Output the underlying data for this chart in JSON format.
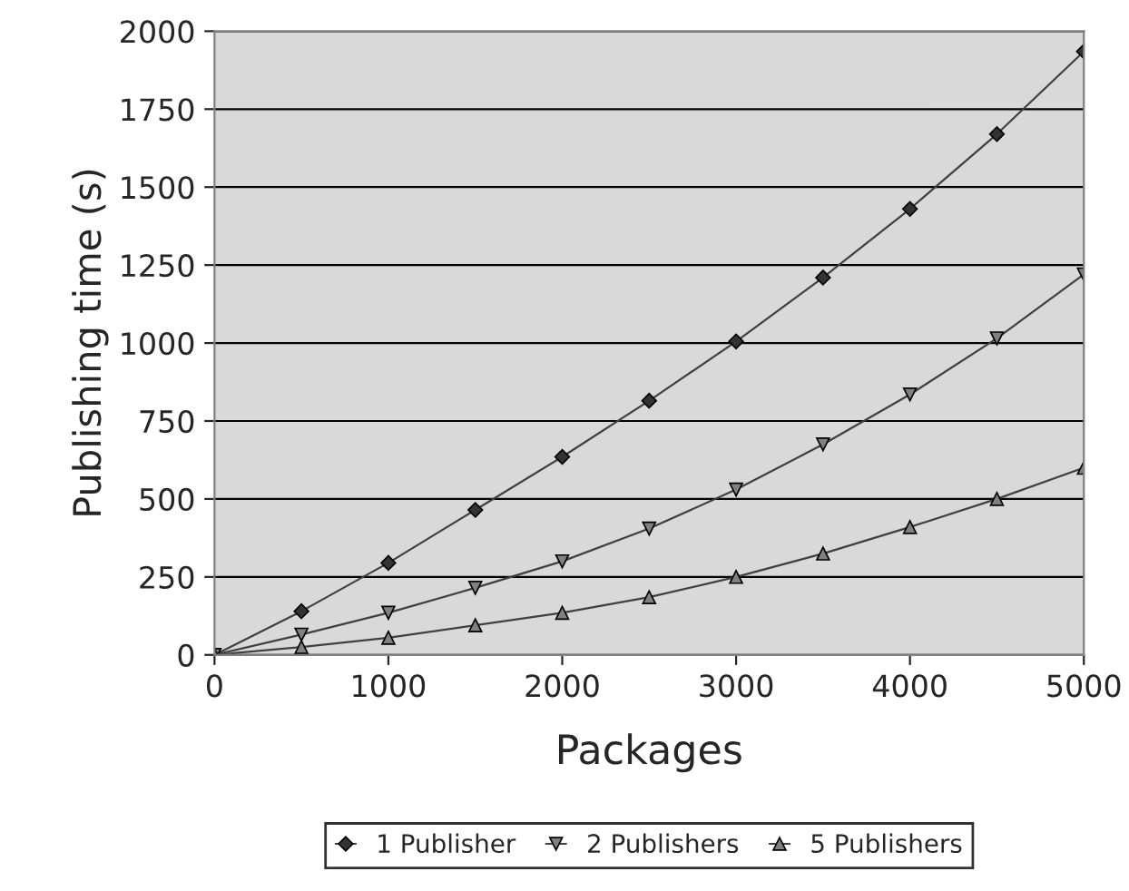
{
  "chart_data": {
    "type": "line",
    "xlabel": "Packages",
    "ylabel": "Publishing time (s)",
    "x": [
      0,
      500,
      1000,
      1500,
      2000,
      2500,
      3000,
      3500,
      4000,
      4500,
      5000
    ],
    "series": [
      {
        "name": "1 Publisher",
        "color": "#333333",
        "marker": "diamond",
        "values": [
          0,
          140,
          295,
          465,
          635,
          815,
          1005,
          1210,
          1430,
          1670,
          1935
        ]
      },
      {
        "name": "2 Publishers",
        "color": "#808080",
        "marker": "triangle_down",
        "values": [
          0,
          65,
          135,
          215,
          300,
          405,
          530,
          675,
          835,
          1015,
          1220
        ]
      },
      {
        "name": "5 Publishers",
        "color": "#808080",
        "marker": "triangle",
        "values": [
          0,
          25,
          55,
          95,
          135,
          185,
          250,
          325,
          410,
          500,
          600
        ]
      }
    ],
    "xlim": [
      0,
      5000
    ],
    "xticks": [
      0,
      1000,
      2000,
      3000,
      4000,
      5000
    ],
    "ylim": [
      0,
      2000
    ],
    "yticks": [
      0,
      250,
      500,
      750,
      1000,
      1250,
      1500,
      1750,
      2000
    ],
    "grid": "y",
    "legend": "bottom",
    "line_style": "solid"
  }
}
